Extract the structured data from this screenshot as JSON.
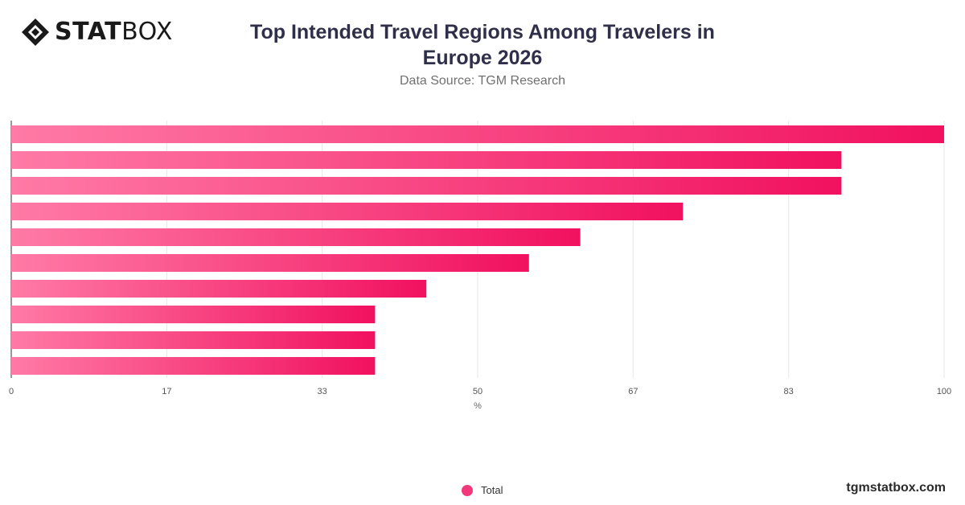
{
  "brand": {
    "logo_bold": "STAT",
    "logo_light": "BOX",
    "site": "tgmstatbox.com"
  },
  "colors": {
    "bar_start": "#ff7aa6",
    "bar_end": "#f1115f",
    "legend": "#f2377a",
    "grid": "#e6e6e6"
  },
  "chart_data": {
    "type": "bar",
    "orientation": "horizontal",
    "title_line1": "Top Intended Travel Regions Among Travelers in",
    "title_line2": "Europe 2026",
    "subtitle": "Data Source: TGM Research",
    "xlabel": "%",
    "ylabel": "",
    "xlim": [
      0,
      100
    ],
    "ticks": [
      "0",
      "17",
      "33",
      "50",
      "67",
      "83",
      "100"
    ],
    "grid": true,
    "legend_position": "bottom",
    "categories": [
      "",
      "",
      "",
      "",
      "",
      "",
      "",
      "",
      "",
      ""
    ],
    "series": [
      {
        "name": "Total",
        "values": [
          100,
          89,
          89,
          72,
          61,
          55.5,
          44.5,
          39,
          39,
          39
        ]
      }
    ]
  }
}
